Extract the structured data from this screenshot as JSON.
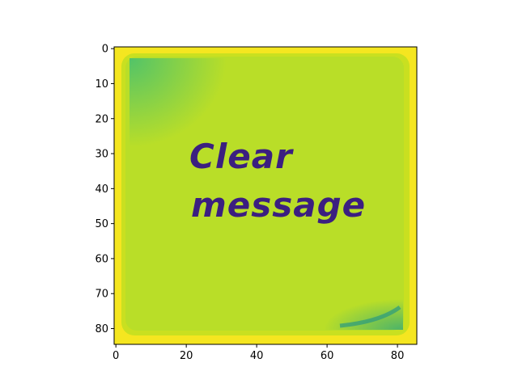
{
  "image_content": {
    "line1": "Clear",
    "line2": "message",
    "colors": {
      "border": "#f5e620",
      "background": "#b9de28",
      "text": "#3b1f80",
      "corner_glow": "#4cc26c"
    }
  },
  "chart_data": {
    "type": "heatmap",
    "title": "",
    "xlabel": "",
    "ylabel": "",
    "colormap": "viridis",
    "image_size": [
      86,
      85
    ],
    "xlim": [
      -0.5,
      85.5
    ],
    "ylim": [
      84.5,
      -0.5
    ],
    "x_ticks": [
      0,
      20,
      40,
      60,
      80
    ],
    "y_ticks": [
      0,
      10,
      20,
      30,
      40,
      50,
      60,
      70,
      80
    ],
    "x_tick_labels": [
      "0",
      "20",
      "40",
      "60",
      "80"
    ],
    "y_tick_labels": [
      "0",
      "10",
      "20",
      "30",
      "40",
      "50",
      "60",
      "70",
      "80"
    ],
    "grid": false
  }
}
